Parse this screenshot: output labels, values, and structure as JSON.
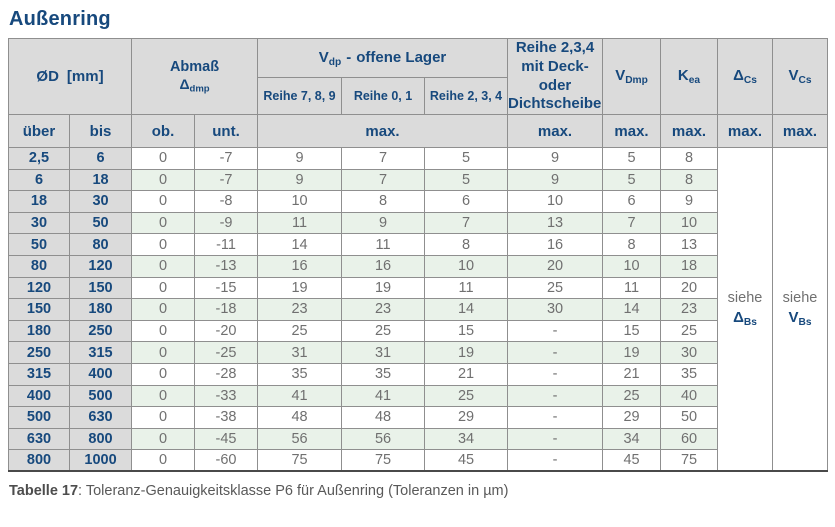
{
  "page": {
    "title": "Außenring",
    "caption_label": "Tabelle 17",
    "caption_rest": ": Toleranz-Genauigkeitsklasse P6 für Außenring (Toleranzen in µm)"
  },
  "colors": {
    "accent_blue": "#17497d",
    "header_bg": "#dbdbdb",
    "stripe_green": "#e9f2e9",
    "grid_line": "#8f8f8f",
    "value_gray": "#707070",
    "bottom_border": "#4a4a4a"
  },
  "table": {
    "header": {
      "d_label": "ØD",
      "d_unit": "[mm]",
      "abmass_line1": "Abmaß",
      "abmass_symbol": "Δ",
      "abmass_sub": "dmp",
      "vdp_symbol": "V",
      "vdp_sub": "dp",
      "vdp_dash": "-",
      "vdp_rest": "offene Lager",
      "reihe_789": "Reihe 7, 8, 9",
      "reihe_01": "Reihe 0, 1",
      "reihe_234": "Reihe 2, 3, 4",
      "deck_line1": "Reihe 2,3,4",
      "deck_line2": "mit Deck- oder",
      "deck_line3": "Dichtscheiben",
      "vdmp_symbol": "V",
      "vdmp_sub": "Dmp",
      "kea_symbol": "K",
      "kea_sub": "ea",
      "dcs_symbol": "Δ",
      "dcs_sub": "Cs",
      "vcs_symbol": "V",
      "vcs_sub": "Cs",
      "ueber": "über",
      "bis": "bis",
      "ob": "ob.",
      "unt": "unt.",
      "max": "max."
    },
    "rows": [
      [
        "2,5",
        "6",
        "0",
        "-7",
        "9",
        "7",
        "5",
        "9",
        "5",
        "8"
      ],
      [
        "6",
        "18",
        "0",
        "-7",
        "9",
        "7",
        "5",
        "9",
        "5",
        "8"
      ],
      [
        "18",
        "30",
        "0",
        "-8",
        "10",
        "8",
        "6",
        "10",
        "6",
        "9"
      ],
      [
        "30",
        "50",
        "0",
        "-9",
        "11",
        "9",
        "7",
        "13",
        "7",
        "10"
      ],
      [
        "50",
        "80",
        "0",
        "-11",
        "14",
        "11",
        "8",
        "16",
        "8",
        "13"
      ],
      [
        "80",
        "120",
        "0",
        "-13",
        "16",
        "16",
        "10",
        "20",
        "10",
        "18"
      ],
      [
        "120",
        "150",
        "0",
        "-15",
        "19",
        "19",
        "11",
        "25",
        "11",
        "20"
      ],
      [
        "150",
        "180",
        "0",
        "-18",
        "23",
        "23",
        "14",
        "30",
        "14",
        "23"
      ],
      [
        "180",
        "250",
        "0",
        "-20",
        "25",
        "25",
        "15",
        "-",
        "15",
        "25"
      ],
      [
        "250",
        "315",
        "0",
        "-25",
        "31",
        "31",
        "19",
        "-",
        "19",
        "30"
      ],
      [
        "315",
        "400",
        "0",
        "-28",
        "35",
        "35",
        "21",
        "-",
        "21",
        "35"
      ],
      [
        "400",
        "500",
        "0",
        "-33",
        "41",
        "41",
        "25",
        "-",
        "25",
        "40"
      ],
      [
        "500",
        "630",
        "0",
        "-38",
        "48",
        "48",
        "29",
        "-",
        "29",
        "50"
      ],
      [
        "630",
        "800",
        "0",
        "-45",
        "56",
        "56",
        "34",
        "-",
        "34",
        "60"
      ],
      [
        "800",
        "1000",
        "0",
        "-60",
        "75",
        "75",
        "45",
        "-",
        "45",
        "75"
      ]
    ],
    "siehe_dbs": {
      "prefix": "siehe",
      "symbol": "Δ",
      "sub": "Bs"
    },
    "siehe_vbs": {
      "prefix": "siehe",
      "symbol": "V",
      "sub": "Bs"
    }
  }
}
